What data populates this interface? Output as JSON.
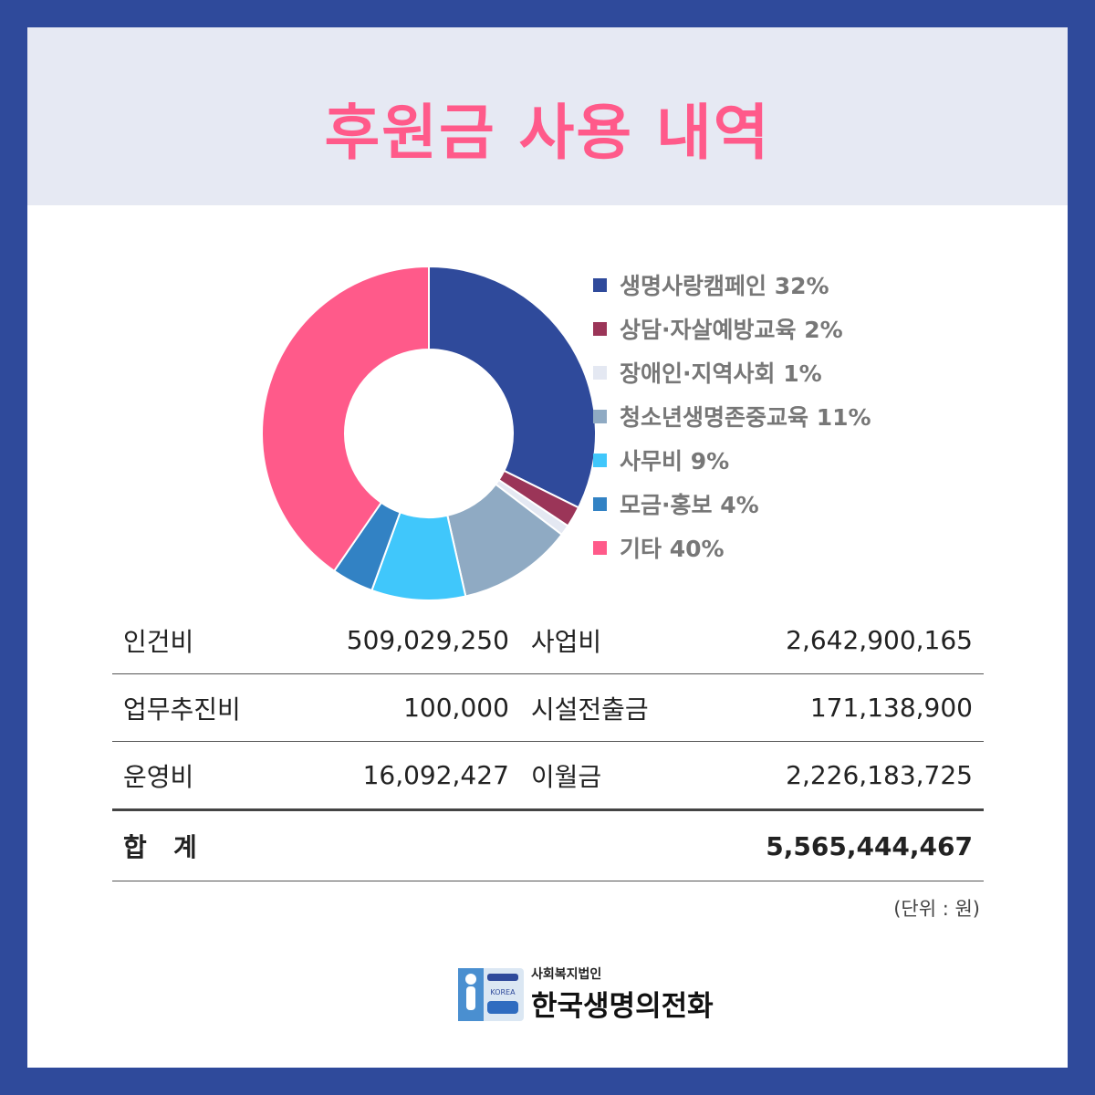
{
  "title": "후원금 사용 내역",
  "chart_data": {
    "type": "pie",
    "donut": true,
    "categories": [
      "생명사랑캠페인",
      "상담·자살예방교육",
      "장애인·지역사회",
      "청소년생명존중교육",
      "사무비",
      "모금·홍보",
      "기타"
    ],
    "values": [
      32,
      2,
      1,
      11,
      9,
      4,
      40
    ],
    "labels": [
      "생명사랑캠페인 32%",
      "상담·자살예방교육 2%",
      "장애인·지역사회 1%",
      "청소년생명존중교육 11%",
      "사무비 9%",
      "모금·홍보 4%",
      "기타 40%"
    ],
    "colors": [
      "#2f4a9b",
      "#9b3558",
      "#e4e8f2",
      "#8faac3",
      "#40c7fb",
      "#3282c4",
      "#ff5a8a"
    ],
    "legend": "right"
  },
  "table": {
    "rows": [
      {
        "label1": "인건비",
        "value1": "509,029,250",
        "label2": "사업비",
        "value2": "2,642,900,165"
      },
      {
        "label1": "업무추진비",
        "value1": "100,000",
        "label2": "시설전출금",
        "value2": "171,138,900"
      },
      {
        "label1": "운영비",
        "value1": "16,092,427",
        "label2": "이월금",
        "value2": "2,226,183,725"
      }
    ],
    "total_label": "합   계",
    "total_value": "5,565,444,467"
  },
  "unit": "(단위 : 원)",
  "logo": {
    "subtitle": "사회복지법인",
    "name": "한국생명의전화",
    "emblem_text": "KOREA"
  }
}
